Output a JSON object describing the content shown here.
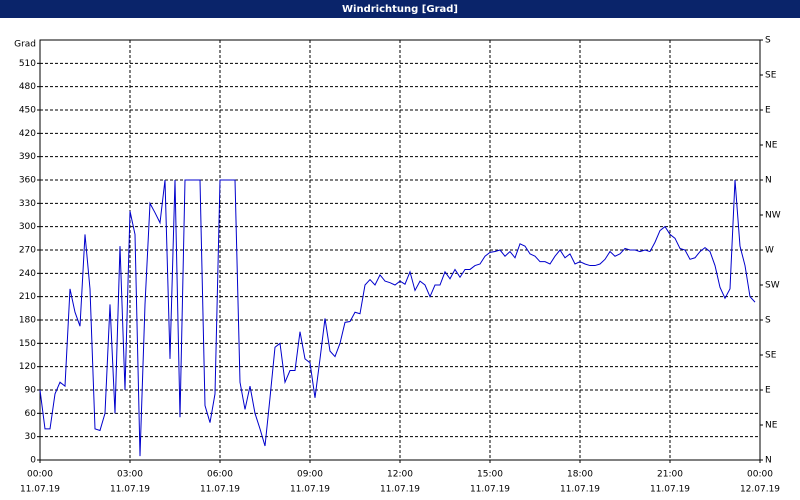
{
  "chart_data": {
    "type": "line",
    "title": "Windrichtung [Grad]",
    "y_label": "Grad",
    "xlim": [
      0,
      1440
    ],
    "xticks": [
      {
        "value": 0,
        "label": "00:00",
        "date": "11.07.19"
      },
      {
        "value": 180,
        "label": "03:00",
        "date": "11.07.19"
      },
      {
        "value": 360,
        "label": "06:00",
        "date": "11.07.19"
      },
      {
        "value": 540,
        "label": "09:00",
        "date": "11.07.19"
      },
      {
        "value": 720,
        "label": "12:00",
        "date": "11.07.19"
      },
      {
        "value": 900,
        "label": "15:00",
        "date": "11.07.19"
      },
      {
        "value": 1080,
        "label": "18:00",
        "date": "11.07.19"
      },
      {
        "value": 1260,
        "label": "21:00",
        "date": "11.07.19"
      },
      {
        "value": 1440,
        "label": "00:00",
        "date": "12.07.19"
      }
    ],
    "ylim": [
      0,
      540
    ],
    "yticks": [
      0,
      30,
      60,
      90,
      120,
      150,
      180,
      210,
      240,
      270,
      300,
      330,
      360,
      390,
      420,
      450,
      480,
      510
    ],
    "y2lim": [
      0,
      540
    ],
    "y2ticks": [
      {
        "value": 0,
        "label": "N"
      },
      {
        "value": 45,
        "label": "NE"
      },
      {
        "value": 90,
        "label": "E"
      },
      {
        "value": 135,
        "label": "SE"
      },
      {
        "value": 180,
        "label": "S"
      },
      {
        "value": 225,
        "label": "SW"
      },
      {
        "value": 270,
        "label": "W"
      },
      {
        "value": 315,
        "label": "NW"
      },
      {
        "value": 360,
        "label": "N"
      },
      {
        "value": 405,
        "label": "NE"
      },
      {
        "value": 450,
        "label": "E"
      },
      {
        "value": 495,
        "label": "SE"
      },
      {
        "value": 540,
        "label": "S"
      }
    ],
    "grid": true,
    "series": [
      {
        "name": "Windrichtung",
        "color": "#0000cc",
        "x": [
          0,
          10,
          20,
          30,
          40,
          50,
          60,
          70,
          80,
          90,
          100,
          110,
          120,
          130,
          140,
          150,
          160,
          170,
          180,
          190,
          200,
          210,
          220,
          230,
          240,
          250,
          260,
          270,
          280,
          290,
          310,
          320,
          330,
          340,
          350,
          360,
          380,
          390,
          400,
          410,
          420,
          430,
          440,
          450,
          460,
          470,
          480,
          490,
          500,
          510,
          520,
          530,
          540,
          550,
          560,
          570,
          580,
          590,
          600,
          610,
          620,
          630,
          640,
          650,
          660,
          670,
          680,
          690,
          700,
          710,
          720,
          730,
          740,
          750,
          760,
          770,
          780,
          790,
          800,
          810,
          820,
          830,
          840,
          850,
          860,
          870,
          880,
          890,
          900,
          910,
          920,
          930,
          940,
          950,
          960,
          970,
          980,
          990,
          1000,
          1010,
          1020,
          1030,
          1040,
          1050,
          1060,
          1070,
          1080,
          1090,
          1100,
          1110,
          1120,
          1130,
          1140,
          1150,
          1160,
          1170,
          1180,
          1190,
          1200,
          1210,
          1220,
          1230,
          1240,
          1250,
          1260,
          1270,
          1280,
          1290,
          1300,
          1310,
          1320,
          1330,
          1340,
          1350,
          1360,
          1370,
          1380,
          1390,
          1400,
          1410,
          1420,
          1430
        ],
        "values": [
          90,
          40,
          40,
          85,
          100,
          95,
          220,
          190,
          172,
          290,
          220,
          40,
          38,
          60,
          200,
          60,
          275,
          90,
          320,
          290,
          5,
          200,
          330,
          318,
          305,
          360,
          130,
          360,
          55,
          360,
          360,
          360,
          70,
          48,
          85,
          360,
          360,
          360,
          100,
          65,
          95,
          60,
          40,
          18,
          80,
          145,
          150,
          100,
          115,
          115,
          165,
          130,
          125,
          80,
          130,
          182,
          140,
          133,
          150,
          177,
          178,
          190,
          188,
          225,
          232,
          225,
          238,
          230,
          228,
          225,
          230,
          226,
          242,
          218,
          230,
          225,
          210,
          225,
          225,
          242,
          233,
          245,
          235,
          245,
          245,
          250,
          252,
          262,
          267,
          268,
          270,
          262,
          268,
          260,
          278,
          275,
          265,
          262,
          255,
          255,
          252,
          262,
          270,
          260,
          265,
          252,
          255,
          252,
          250,
          250,
          252,
          258,
          268,
          262,
          265,
          272,
          270,
          270,
          268,
          270,
          268,
          280,
          295,
          300,
          290,
          285,
          272,
          270,
          258,
          260,
          268,
          273,
          268,
          250,
          222,
          208,
          220,
          360,
          275,
          250,
          210,
          203
        ]
      }
    ]
  }
}
